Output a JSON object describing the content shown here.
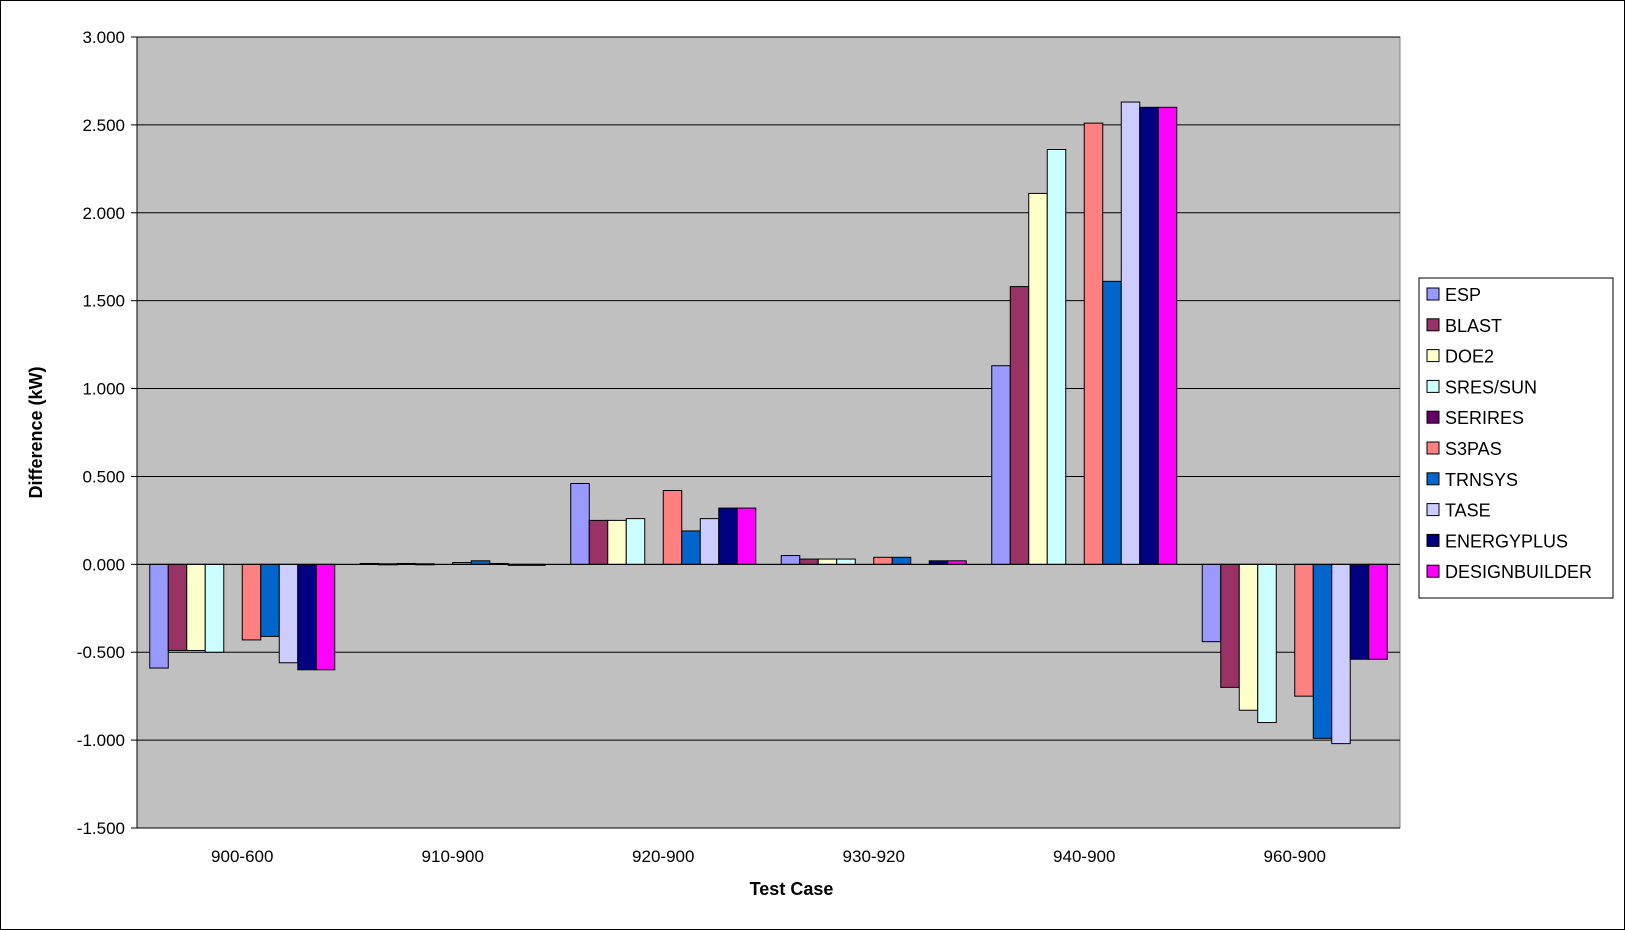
{
  "chart_data": {
    "type": "bar",
    "title": "",
    "xlabel": "Test Case",
    "ylabel": "Difference (kW)",
    "ylim": [
      -1.5,
      3.0
    ],
    "yticks": [
      "3.000",
      "2.500",
      "2.000",
      "1.500",
      "1.000",
      "0.500",
      "0.000",
      "-0.500",
      "-1.000",
      "-1.500"
    ],
    "ytick_values": [
      3.0,
      2.5,
      2.0,
      1.5,
      1.0,
      0.5,
      0.0,
      -0.5,
      -1.0,
      -1.5
    ],
    "grid": true,
    "legend_position": "right",
    "plot_background": "#c0c0c0",
    "categories": [
      "900-600",
      "910-900",
      "920-900",
      "930-920",
      "940-900",
      "960-900"
    ],
    "series": [
      {
        "name": "ESP",
        "color": "#9999ff",
        "values": [
          -0.59,
          0.005,
          0.46,
          0.05,
          1.13,
          -0.44
        ]
      },
      {
        "name": "BLAST",
        "color": "#993366",
        "values": [
          -0.49,
          0.003,
          0.25,
          0.03,
          1.58,
          -0.7
        ]
      },
      {
        "name": "DOE2",
        "color": "#ffffcc",
        "values": [
          -0.49,
          0.005,
          0.25,
          0.03,
          2.11,
          -0.83
        ]
      },
      {
        "name": "SRES/SUN",
        "color": "#ccffff",
        "values": [
          -0.5,
          0.003,
          0.26,
          0.03,
          2.36,
          -0.9
        ]
      },
      {
        "name": "SERIRES",
        "color": "#660066",
        "values": [
          null,
          null,
          null,
          null,
          null,
          null
        ]
      },
      {
        "name": "S3PAS",
        "color": "#ff8080",
        "values": [
          -0.43,
          0.01,
          0.42,
          0.04,
          2.51,
          -0.75
        ]
      },
      {
        "name": "TRNSYS",
        "color": "#0066cc",
        "values": [
          -0.41,
          0.02,
          0.19,
          0.04,
          1.61,
          -0.99
        ]
      },
      {
        "name": "TASE",
        "color": "#ccccff",
        "values": [
          -0.56,
          0.005,
          0.26,
          null,
          2.63,
          -1.02
        ]
      },
      {
        "name": "ENERGYPLUS",
        "color": "#000080",
        "values": [
          -0.6,
          -0.004,
          0.32,
          0.02,
          2.6,
          -0.54
        ]
      },
      {
        "name": "DESIGNBUILDER",
        "color": "#ff00ff",
        "values": [
          -0.6,
          -0.004,
          0.32,
          0.02,
          2.6,
          -0.54
        ]
      }
    ]
  }
}
